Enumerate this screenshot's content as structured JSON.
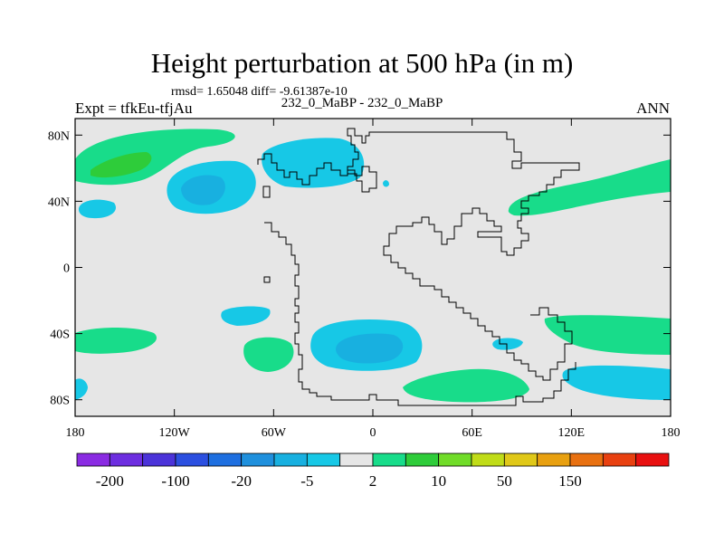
{
  "title": "Height perturbation at 500 hPa (in m)",
  "stats_text": "rmsd= 1.65048 diff= -9.61387e-10",
  "left_label": "Expt = tfkEu-tfjAu",
  "center_label": "232_0_MaBP - 232_0_MaBP",
  "right_label": "ANN",
  "lat_ticks": [
    {
      "label": "80N",
      "lat": 80
    },
    {
      "label": "40N",
      "lat": 40
    },
    {
      "label": "0",
      "lat": 0
    },
    {
      "label": "40S",
      "lat": -40
    },
    {
      "label": "80S",
      "lat": -80
    }
  ],
  "lon_ticks": [
    {
      "label": "180",
      "lon": -180
    },
    {
      "label": "120W",
      "lon": -120
    },
    {
      "label": "60W",
      "lon": -60
    },
    {
      "label": "0",
      "lon": 0
    },
    {
      "label": "60E",
      "lon": 60
    },
    {
      "label": "120E",
      "lon": 120
    },
    {
      "label": "180",
      "lon": 180
    }
  ],
  "map": {
    "lon_range": [
      -180,
      180
    ],
    "lat_range": [
      -90,
      90
    ],
    "background": "#e6e6e6"
  },
  "colorbar": {
    "colors": [
      "#8a2be2",
      "#6d2ee0",
      "#4b33d9",
      "#2b4fe0",
      "#1e6fe0",
      "#1f90dd",
      "#18b0e0",
      "#17c8e6",
      "#e6e6e6",
      "#18dc8a",
      "#2ecc3a",
      "#70dc28",
      "#c0dc18",
      "#e0c818",
      "#e8a010",
      "#e87010",
      "#e84010",
      "#e81010"
    ],
    "labels": [
      {
        "text": "-200",
        "boundary": 1
      },
      {
        "text": "-100",
        "boundary": 3
      },
      {
        "text": "-20",
        "boundary": 5
      },
      {
        "text": "-5",
        "boundary": 7
      },
      {
        "text": "2",
        "boundary": 9
      },
      {
        "text": "10",
        "boundary": 11
      },
      {
        "text": "50",
        "boundary": 13
      },
      {
        "text": "150",
        "boundary": 15
      }
    ]
  },
  "fills": {
    "green": "#18dc8a",
    "green_dark": "#2ecc3a",
    "light_blue": "#17c8e6",
    "mid_blue": "#18b0e0"
  }
}
